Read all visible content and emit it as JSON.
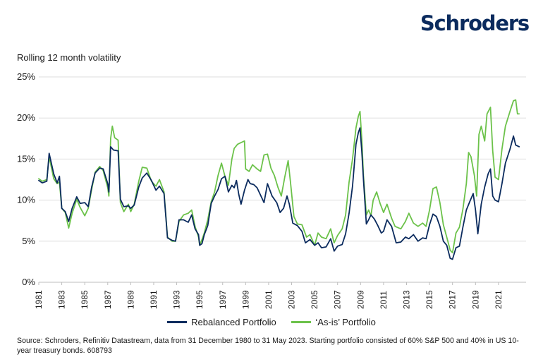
{
  "brand": {
    "name": "Schroders"
  },
  "colors": {
    "rebalanced": "#0b2b5e",
    "as_is": "#6cc24a",
    "grid": "#dddddd",
    "brand": "#0b2b5e"
  },
  "chart_data": {
    "type": "line",
    "title": "Rolling 12 month volatility",
    "xlabel": "",
    "ylabel": "",
    "x_ticks": [
      "1981",
      "1983",
      "1985",
      "1987",
      "1989",
      "1991",
      "1993",
      "1995",
      "1997",
      "1999",
      "2001",
      "2003",
      "2005",
      "2007",
      "2009",
      "2011",
      "2013",
      "2015",
      "2017",
      "2019",
      "2021"
    ],
    "y_ticks": [
      "0%",
      "5%",
      "10%",
      "15%",
      "20%",
      "25%"
    ],
    "xlim": [
      1981,
      2023.4
    ],
    "ylim": [
      0,
      25
    ],
    "legend_position": "bottom",
    "grid": "horizontal",
    "series": [
      {
        "name": "Rebalanced Portfolio",
        "color": "#0b2b5e",
        "points": [
          [
            1981.0,
            12.4
          ],
          [
            1981.3,
            12.1
          ],
          [
            1981.7,
            12.3
          ],
          [
            1981.9,
            15.7
          ],
          [
            1982.3,
            13.2
          ],
          [
            1982.6,
            12.1
          ],
          [
            1982.8,
            12.9
          ],
          [
            1983.0,
            9.0
          ],
          [
            1983.3,
            8.6
          ],
          [
            1983.6,
            7.4
          ],
          [
            1983.9,
            9.0
          ],
          [
            1984.3,
            10.4
          ],
          [
            1984.6,
            9.6
          ],
          [
            1985.0,
            9.7
          ],
          [
            1985.3,
            9.2
          ],
          [
            1985.6,
            11.6
          ],
          [
            1985.9,
            13.3
          ],
          [
            1986.3,
            13.9
          ],
          [
            1986.6,
            13.8
          ],
          [
            1987.0,
            12.0
          ],
          [
            1987.1,
            11.0
          ],
          [
            1987.25,
            16.5
          ],
          [
            1987.5,
            16.1
          ],
          [
            1987.9,
            16.0
          ],
          [
            1988.1,
            10.1
          ],
          [
            1988.4,
            9.2
          ],
          [
            1988.8,
            9.3
          ],
          [
            1989.0,
            9.0
          ],
          [
            1989.3,
            9.4
          ],
          [
            1989.7,
            11.6
          ],
          [
            1990.0,
            12.7
          ],
          [
            1990.4,
            13.3
          ],
          [
            1990.8,
            12.4
          ],
          [
            1991.2,
            11.2
          ],
          [
            1991.5,
            11.7
          ],
          [
            1991.9,
            10.8
          ],
          [
            1992.2,
            5.4
          ],
          [
            1992.6,
            5.1
          ],
          [
            1992.9,
            5.0
          ],
          [
            1993.2,
            7.6
          ],
          [
            1993.6,
            7.6
          ],
          [
            1994.0,
            7.3
          ],
          [
            1994.3,
            8.2
          ],
          [
            1994.6,
            6.5
          ],
          [
            1994.9,
            5.8
          ],
          [
            1995.0,
            4.5
          ],
          [
            1995.2,
            4.7
          ],
          [
            1995.4,
            5.8
          ],
          [
            1995.7,
            6.9
          ],
          [
            1996.0,
            9.6
          ],
          [
            1996.3,
            10.5
          ],
          [
            1996.6,
            11.3
          ],
          [
            1996.9,
            12.6
          ],
          [
            1997.2,
            12.9
          ],
          [
            1997.5,
            11.0
          ],
          [
            1997.8,
            11.8
          ],
          [
            1998.0,
            11.5
          ],
          [
            1998.2,
            12.4
          ],
          [
            1998.4,
            10.7
          ],
          [
            1998.6,
            9.5
          ],
          [
            1998.9,
            11.2
          ],
          [
            1999.2,
            12.5
          ],
          [
            1999.4,
            12.0
          ],
          [
            1999.7,
            11.9
          ],
          [
            2000.0,
            11.5
          ],
          [
            2000.3,
            10.6
          ],
          [
            2000.6,
            9.7
          ],
          [
            2000.9,
            12.0
          ],
          [
            2001.3,
            10.5
          ],
          [
            2001.7,
            9.7
          ],
          [
            2002.0,
            8.5
          ],
          [
            2002.3,
            9.0
          ],
          [
            2002.6,
            10.5
          ],
          [
            2002.8,
            9.5
          ],
          [
            2003.1,
            7.2
          ],
          [
            2003.5,
            6.9
          ],
          [
            2003.9,
            6.2
          ],
          [
            2004.2,
            4.8
          ],
          [
            2004.6,
            5.2
          ],
          [
            2005.0,
            4.5
          ],
          [
            2005.3,
            4.8
          ],
          [
            2005.6,
            4.2
          ],
          [
            2006.0,
            4.3
          ],
          [
            2006.4,
            5.3
          ],
          [
            2006.7,
            3.8
          ],
          [
            2007.0,
            4.4
          ],
          [
            2007.4,
            4.6
          ],
          [
            2007.7,
            5.9
          ],
          [
            2008.0,
            8.4
          ],
          [
            2008.3,
            11.7
          ],
          [
            2008.6,
            16.8
          ],
          [
            2008.8,
            18.2
          ],
          [
            2008.95,
            18.8
          ],
          [
            2009.1,
            16.0
          ],
          [
            2009.25,
            12.5
          ],
          [
            2009.5,
            7.1
          ],
          [
            2009.7,
            7.6
          ],
          [
            2009.9,
            8.2
          ],
          [
            2010.2,
            7.7
          ],
          [
            2010.5,
            6.9
          ],
          [
            2010.8,
            6.0
          ],
          [
            2011.0,
            6.2
          ],
          [
            2011.3,
            7.6
          ],
          [
            2011.7,
            6.8
          ],
          [
            2012.1,
            4.8
          ],
          [
            2012.5,
            4.9
          ],
          [
            2012.9,
            5.5
          ],
          [
            2013.2,
            5.3
          ],
          [
            2013.6,
            5.8
          ],
          [
            2014.0,
            5.0
          ],
          [
            2014.4,
            5.4
          ],
          [
            2014.7,
            5.3
          ],
          [
            2015.0,
            7.0
          ],
          [
            2015.3,
            8.3
          ],
          [
            2015.6,
            8.0
          ],
          [
            2015.9,
            6.8
          ],
          [
            2016.2,
            5.0
          ],
          [
            2016.5,
            4.5
          ],
          [
            2016.8,
            2.9
          ],
          [
            2017.0,
            2.8
          ],
          [
            2017.3,
            4.2
          ],
          [
            2017.6,
            4.4
          ],
          [
            2017.9,
            6.7
          ],
          [
            2018.2,
            8.8
          ],
          [
            2018.5,
            9.8
          ],
          [
            2018.8,
            10.8
          ],
          [
            2019.0,
            8.8
          ],
          [
            2019.2,
            5.9
          ],
          [
            2019.5,
            9.5
          ],
          [
            2019.8,
            11.6
          ],
          [
            2020.1,
            13.2
          ],
          [
            2020.3,
            13.8
          ],
          [
            2020.5,
            10.5
          ],
          [
            2020.7,
            10.0
          ],
          [
            2021.0,
            9.8
          ],
          [
            2021.3,
            12.0
          ],
          [
            2021.6,
            14.5
          ],
          [
            2022.0,
            16.2
          ],
          [
            2022.3,
            17.8
          ],
          [
            2022.5,
            16.7
          ],
          [
            2022.8,
            16.5
          ]
        ]
      },
      {
        "name": "‘As-is’ Portfolio",
        "color": "#6cc24a",
        "points": [
          [
            1981.0,
            12.6
          ],
          [
            1981.3,
            12.3
          ],
          [
            1981.7,
            12.5
          ],
          [
            1981.9,
            15.3
          ],
          [
            1982.3,
            12.6
          ],
          [
            1982.6,
            12.0
          ],
          [
            1982.8,
            12.2
          ],
          [
            1983.0,
            9.0
          ],
          [
            1983.3,
            8.5
          ],
          [
            1983.6,
            6.6
          ],
          [
            1983.9,
            8.4
          ],
          [
            1984.3,
            10.1
          ],
          [
            1984.6,
            9.1
          ],
          [
            1985.0,
            8.1
          ],
          [
            1985.3,
            9.0
          ],
          [
            1985.6,
            11.3
          ],
          [
            1985.9,
            13.4
          ],
          [
            1986.3,
            14.1
          ],
          [
            1986.6,
            13.6
          ],
          [
            1987.0,
            11.5
          ],
          [
            1987.1,
            10.5
          ],
          [
            1987.25,
            17.5
          ],
          [
            1987.4,
            19.0
          ],
          [
            1987.6,
            17.6
          ],
          [
            1987.9,
            17.3
          ],
          [
            1988.1,
            9.7
          ],
          [
            1988.4,
            8.6
          ],
          [
            1988.8,
            9.5
          ],
          [
            1989.0,
            8.6
          ],
          [
            1989.3,
            9.5
          ],
          [
            1989.7,
            12.3
          ],
          [
            1990.0,
            14.0
          ],
          [
            1990.4,
            13.9
          ],
          [
            1990.8,
            12.3
          ],
          [
            1991.2,
            11.7
          ],
          [
            1991.5,
            12.5
          ],
          [
            1991.9,
            11.0
          ],
          [
            1992.2,
            5.5
          ],
          [
            1992.6,
            5.0
          ],
          [
            1992.9,
            5.0
          ],
          [
            1993.2,
            7.4
          ],
          [
            1993.6,
            8.2
          ],
          [
            1994.0,
            8.4
          ],
          [
            1994.3,
            8.8
          ],
          [
            1994.6,
            6.8
          ],
          [
            1994.9,
            5.5
          ],
          [
            1995.0,
            4.5
          ],
          [
            1995.2,
            5.2
          ],
          [
            1995.4,
            6.0
          ],
          [
            1995.7,
            7.6
          ],
          [
            1996.0,
            9.8
          ],
          [
            1996.3,
            11.0
          ],
          [
            1996.6,
            13.0
          ],
          [
            1996.9,
            14.5
          ],
          [
            1997.2,
            12.9
          ],
          [
            1997.5,
            11.8
          ],
          [
            1997.8,
            15.0
          ],
          [
            1998.0,
            16.3
          ],
          [
            1998.3,
            16.8
          ],
          [
            1998.6,
            17.0
          ],
          [
            1998.9,
            17.2
          ],
          [
            1999.0,
            13.8
          ],
          [
            1999.3,
            13.5
          ],
          [
            1999.6,
            14.3
          ],
          [
            2000.0,
            13.8
          ],
          [
            2000.3,
            13.5
          ],
          [
            2000.6,
            15.5
          ],
          [
            2000.9,
            15.6
          ],
          [
            2001.2,
            13.9
          ],
          [
            2001.5,
            13.0
          ],
          [
            2001.8,
            11.6
          ],
          [
            2002.1,
            10.5
          ],
          [
            2002.4,
            12.8
          ],
          [
            2002.7,
            14.8
          ],
          [
            2002.9,
            12.2
          ],
          [
            2003.2,
            8.0
          ],
          [
            2003.5,
            7.1
          ],
          [
            2003.9,
            7.0
          ],
          [
            2004.3,
            5.5
          ],
          [
            2004.6,
            5.8
          ],
          [
            2005.0,
            4.5
          ],
          [
            2005.3,
            6.0
          ],
          [
            2005.6,
            5.5
          ],
          [
            2006.0,
            5.3
          ],
          [
            2006.4,
            6.5
          ],
          [
            2006.7,
            4.8
          ],
          [
            2007.0,
            5.7
          ],
          [
            2007.4,
            6.5
          ],
          [
            2007.7,
            8.2
          ],
          [
            2008.0,
            12.2
          ],
          [
            2008.3,
            15.0
          ],
          [
            2008.6,
            18.8
          ],
          [
            2008.8,
            20.2
          ],
          [
            2008.95,
            20.8
          ],
          [
            2009.1,
            17.5
          ],
          [
            2009.25,
            13.0
          ],
          [
            2009.5,
            8.2
          ],
          [
            2009.7,
            8.8
          ],
          [
            2009.9,
            8.1
          ],
          [
            2010.1,
            10.0
          ],
          [
            2010.4,
            11.0
          ],
          [
            2010.7,
            9.6
          ],
          [
            2011.0,
            8.5
          ],
          [
            2011.3,
            9.5
          ],
          [
            2011.7,
            7.8
          ],
          [
            2012.0,
            6.8
          ],
          [
            2012.5,
            6.5
          ],
          [
            2012.9,
            7.4
          ],
          [
            2013.2,
            8.4
          ],
          [
            2013.6,
            7.2
          ],
          [
            2014.0,
            6.8
          ],
          [
            2014.4,
            7.2
          ],
          [
            2014.7,
            6.8
          ],
          [
            2015.0,
            8.8
          ],
          [
            2015.3,
            11.4
          ],
          [
            2015.6,
            11.6
          ],
          [
            2015.9,
            9.7
          ],
          [
            2016.2,
            7.0
          ],
          [
            2016.5,
            5.5
          ],
          [
            2016.8,
            3.9
          ],
          [
            2017.0,
            3.6
          ],
          [
            2017.3,
            6.0
          ],
          [
            2017.6,
            6.7
          ],
          [
            2017.9,
            8.9
          ],
          [
            2018.2,
            12.0
          ],
          [
            2018.4,
            15.8
          ],
          [
            2018.6,
            15.3
          ],
          [
            2018.9,
            13.0
          ],
          [
            2019.1,
            10.5
          ],
          [
            2019.3,
            18.0
          ],
          [
            2019.5,
            19.0
          ],
          [
            2019.8,
            17.2
          ],
          [
            2020.0,
            20.5
          ],
          [
            2020.3,
            21.3
          ],
          [
            2020.5,
            16.0
          ],
          [
            2020.7,
            12.8
          ],
          [
            2021.0,
            12.5
          ],
          [
            2021.3,
            16.2
          ],
          [
            2021.6,
            19.0
          ],
          [
            2022.0,
            20.8
          ],
          [
            2022.3,
            22.1
          ],
          [
            2022.5,
            22.2
          ],
          [
            2022.65,
            20.5
          ],
          [
            2022.8,
            20.5
          ]
        ]
      }
    ]
  },
  "source": "Source: Schroders, Refinitiv Datastream, data from 31 December 1980 to 31 May 2023. Starting portfolio consisted of 60% S&P 500 and 40% in US 10-year treasury bonds. 608793"
}
